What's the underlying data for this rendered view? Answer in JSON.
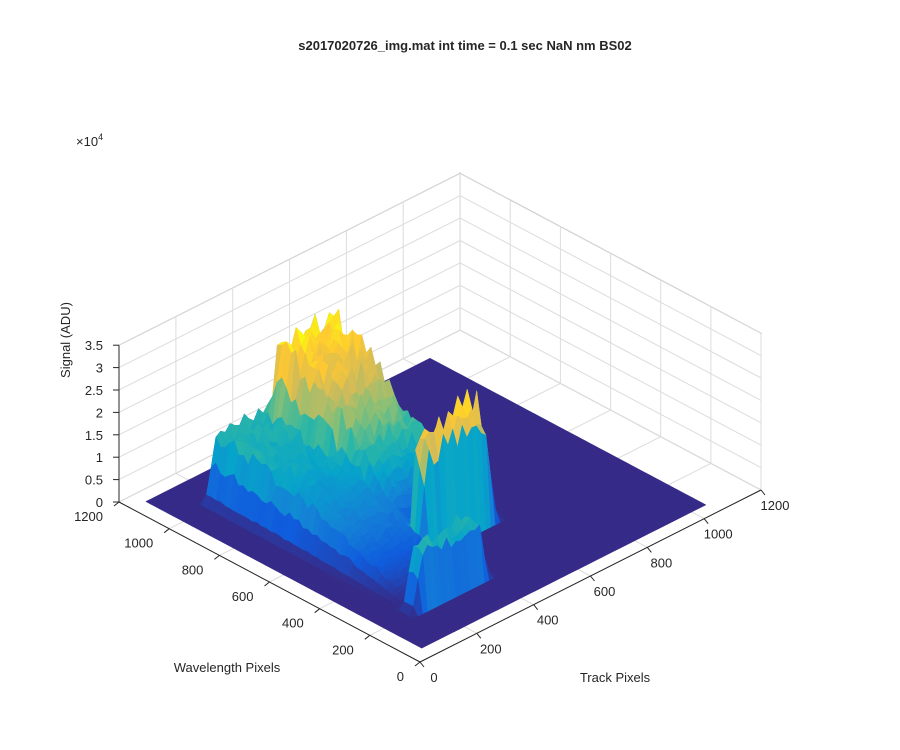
{
  "chart_data": {
    "type": "surface",
    "title": "s2017020726_img.mat int time = 0.1 sec  NaN nm BS02",
    "xlabel": "Track Pixels",
    "ylabel": "Wavelength Pixels",
    "zlabel": "Signal (ADU)",
    "z_multiplier": "×10",
    "z_multiplier_exponent": "4",
    "xlim": [
      0,
      1200
    ],
    "ylim": [
      0,
      1200
    ],
    "zlim": [
      0,
      35000
    ],
    "x_ticks": [
      "0",
      "200",
      "400",
      "600",
      "800",
      "1000",
      "1200"
    ],
    "y_ticks": [
      "0",
      "200",
      "400",
      "600",
      "800",
      "1000",
      "1200"
    ],
    "z_ticks": [
      "0",
      "0.5",
      "1",
      "1.5",
      "2",
      "2.5",
      "3",
      "3.5"
    ],
    "grid": true,
    "colormap": "parula",
    "colormap_stops": [
      "#352a87",
      "#0f5cdd",
      "#1481d6",
      "#06a4ca",
      "#2eb7a4",
      "#87bf77",
      "#d1bb59",
      "#fec832",
      "#f9fb0e"
    ],
    "series": [
      {
        "x_center": 280,
        "x_width": 95,
        "y_start": 1020,
        "y_end": 250,
        "peak": 14000
      },
      {
        "x_center": 480,
        "x_width": 100,
        "y_start": 1000,
        "y_end": 450,
        "peak": 27500
      }
    ]
  }
}
